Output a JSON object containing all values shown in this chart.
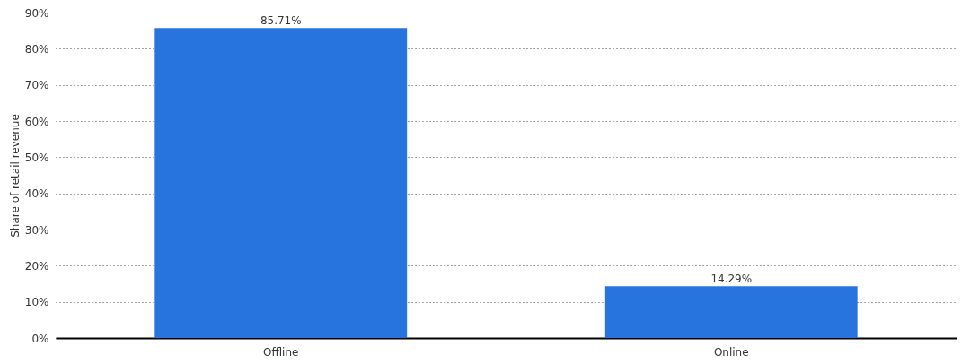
{
  "chart_data": {
    "type": "bar",
    "ylabel": "Share of retail revenue",
    "categories": [
      "Offline",
      "Online"
    ],
    "values": [
      85.71,
      14.29
    ],
    "value_labels": [
      "85.71%",
      "14.29%"
    ],
    "color": "#2874de",
    "ylim": [
      0,
      90
    ],
    "yticks": [
      {
        "value": 0,
        "label": "0%"
      },
      {
        "value": 10,
        "label": "10%"
      },
      {
        "value": 20,
        "label": "20%"
      },
      {
        "value": 30,
        "label": "30%"
      },
      {
        "value": 40,
        "label": "40%"
      },
      {
        "value": 50,
        "label": "50%"
      },
      {
        "value": 60,
        "label": "60%"
      },
      {
        "value": 70,
        "label": "70%"
      },
      {
        "value": 80,
        "label": "80%"
      },
      {
        "value": 90,
        "label": "90%"
      }
    ],
    "grid": "y"
  }
}
